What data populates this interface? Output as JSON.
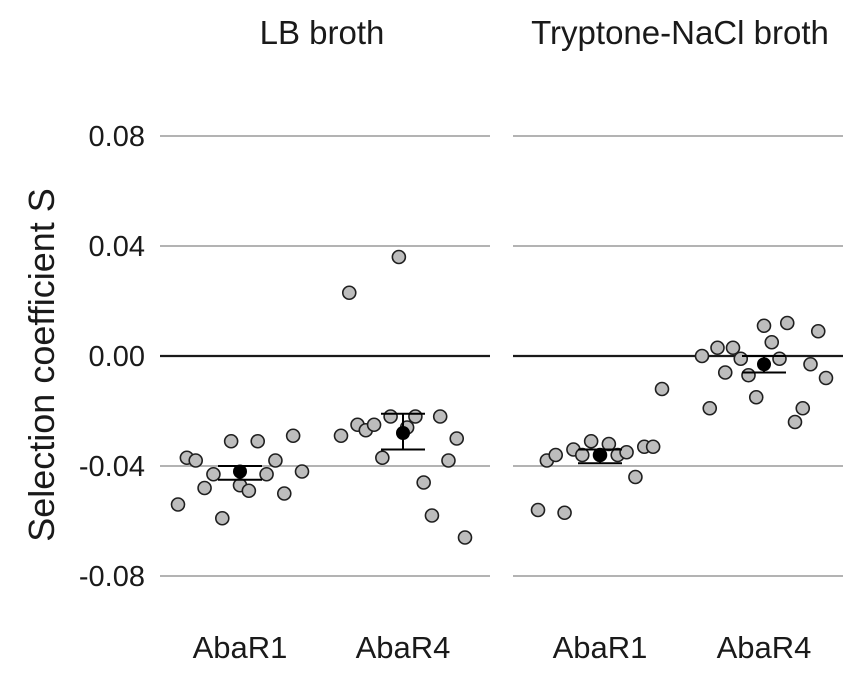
{
  "chart_data": {
    "type": "scatter",
    "ylabel": "Selection coefficient S",
    "ylim": [
      -0.09,
      0.09
    ],
    "yticks": [
      0.08,
      0.04,
      0.0,
      -0.04,
      -0.08
    ],
    "ytick_labels": [
      "0.08",
      "0.04",
      "0.00",
      "-0.04",
      "-0.08"
    ],
    "reference_line": 0.0,
    "grid": true,
    "panels": [
      {
        "title": "LB broth",
        "categories": [
          "AbaR1",
          "AbaR4"
        ],
        "groups": [
          {
            "category": "AbaR1",
            "points": [
              -0.054,
              -0.037,
              -0.038,
              -0.048,
              -0.043,
              -0.059,
              -0.031,
              -0.047,
              -0.049,
              -0.031,
              -0.043,
              -0.038,
              -0.05,
              -0.029,
              -0.042
            ],
            "mean": -0.042,
            "err_low": -0.045,
            "err_high": -0.04
          },
          {
            "category": "AbaR4",
            "points": [
              -0.029,
              0.023,
              -0.025,
              -0.027,
              -0.025,
              -0.037,
              -0.022,
              0.036,
              -0.026,
              -0.022,
              -0.046,
              -0.058,
              -0.022,
              -0.038,
              -0.03,
              -0.066
            ],
            "mean": -0.028,
            "err_low": -0.034,
            "err_high": -0.021
          }
        ]
      },
      {
        "title": "Tryptone-NaCl broth",
        "categories": [
          "AbaR1",
          "AbaR4"
        ],
        "groups": [
          {
            "category": "AbaR1",
            "points": [
              -0.056,
              -0.038,
              -0.036,
              -0.057,
              -0.034,
              -0.036,
              -0.031,
              -0.036,
              -0.032,
              -0.036,
              -0.035,
              -0.044,
              -0.033,
              -0.033,
              -0.012
            ],
            "mean": -0.036,
            "err_low": -0.039,
            "err_high": -0.034
          },
          {
            "category": "AbaR4",
            "points": [
              0.0,
              -0.019,
              0.003,
              -0.006,
              0.003,
              -0.001,
              -0.007,
              -0.015,
              0.011,
              0.005,
              -0.001,
              0.012,
              -0.024,
              -0.019,
              -0.003,
              0.009,
              -0.008
            ],
            "mean": -0.003,
            "err_low": -0.006,
            "err_high": 0.0
          }
        ]
      }
    ]
  }
}
